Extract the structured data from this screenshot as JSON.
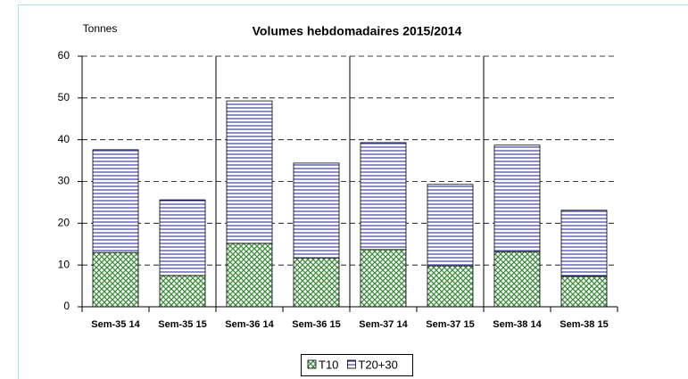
{
  "chart_data": {
    "type": "bar",
    "stacked": true,
    "title": "Volumes hebdomadaires 2015/2014",
    "y_label": "Tonnes",
    "categories": [
      "Sem-35 14",
      "Sem-35 15",
      "Sem-36 14",
      "Sem-36 15",
      "Sem-37 14",
      "Sem-37 15",
      "Sem-38 14",
      "Sem-38 15"
    ],
    "series": [
      {
        "name": "T10",
        "color": "#3c8c3c",
        "values": [
          13.0,
          7.5,
          15.2,
          11.7,
          13.7,
          9.8,
          13.2,
          7.3
        ]
      },
      {
        "name": "T20+30",
        "color": "#1c1c8c",
        "values": [
          24.6,
          18.1,
          34.1,
          22.7,
          25.6,
          19.5,
          25.5,
          15.8
        ]
      }
    ],
    "ylim": [
      0,
      60
    ],
    "yticks": [
      0,
      10,
      20,
      30,
      40,
      50,
      60
    ],
    "grid": true,
    "legend": "bottom"
  }
}
